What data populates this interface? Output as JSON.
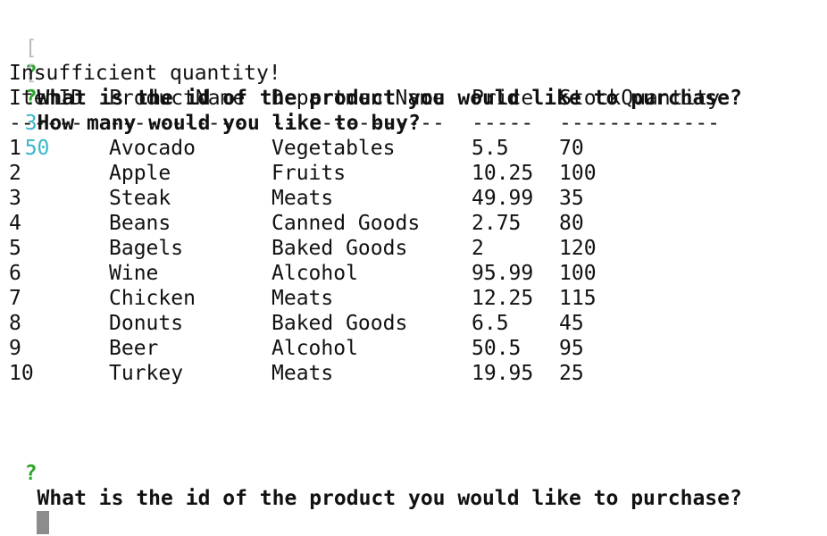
{
  "terminal": {
    "prompt1": {
      "bracket": "[",
      "qmark": "?",
      "question": "What is the id of the product you would like to purchase?",
      "answer": "3"
    },
    "prompt2": {
      "bracket": "[",
      "qmark": "?",
      "question": "How many would you like to buy?",
      "answer": "50"
    },
    "message": "Insufficient quantity!",
    "table": {
      "headers": [
        "ItemID",
        "ProductName",
        "DepartmentName",
        "Price",
        "StockQuantity"
      ],
      "separators": [
        "------",
        "-----------",
        "--------------",
        "-----",
        "-------------"
      ],
      "rows": [
        [
          "1",
          "Avocado",
          "Vegetables",
          "5.5",
          "70"
        ],
        [
          "2",
          "Apple",
          "Fruits",
          "10.25",
          "100"
        ],
        [
          "3",
          "Steak",
          "Meats",
          "49.99",
          "35"
        ],
        [
          "4",
          "Beans",
          "Canned Goods",
          "2.75",
          "80"
        ],
        [
          "5",
          "Bagels",
          "Baked Goods",
          "2",
          "120"
        ],
        [
          "6",
          "Wine",
          "Alcohol",
          "95.99",
          "100"
        ],
        [
          "7",
          "Chicken",
          "Meats",
          "12.25",
          "115"
        ],
        [
          "8",
          "Donuts",
          "Baked Goods",
          "6.5",
          "45"
        ],
        [
          "9",
          "Beer",
          "Alcohol",
          "50.5",
          "95"
        ],
        [
          "10",
          "Turkey",
          "Meats",
          "19.95",
          "25"
        ]
      ]
    },
    "prompt3": {
      "qmark": "?",
      "question": "What is the id of the product you would like to purchase?"
    },
    "colors": {
      "qmark": "#2aa52a",
      "answer": "#3bb7c8",
      "cursor": "#8c8c8c",
      "bracket": "#b8b8b8"
    }
  }
}
